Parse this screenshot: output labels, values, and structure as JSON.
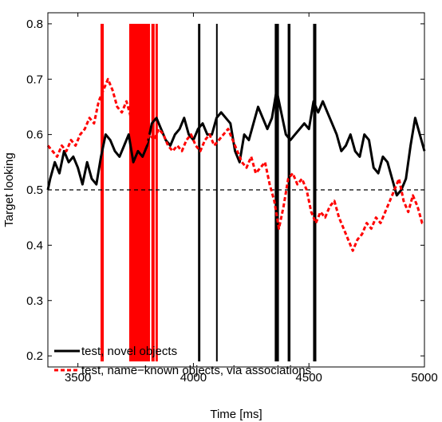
{
  "chart_data": {
    "type": "line",
    "title": "",
    "xlabel": "Time [ms]",
    "ylabel": "Target looking",
    "xlim": [
      3370,
      5000
    ],
    "ylim": [
      0.18,
      0.82
    ],
    "xticks": [
      3500,
      4000,
      4500,
      5000
    ],
    "yticks": [
      0.2,
      0.3,
      0.4,
      0.5,
      0.6,
      0.7,
      0.8
    ],
    "grid": false,
    "legend_position": "bottom-left",
    "reference_line": {
      "y": 0.5,
      "style": "dashed",
      "color": "#000000"
    },
    "series": [
      {
        "name": "test, novel objects",
        "color": "#000000",
        "style": "solid",
        "x": [
          3370,
          3380,
          3400,
          3420,
          3440,
          3460,
          3480,
          3500,
          3520,
          3540,
          3560,
          3580,
          3600,
          3620,
          3640,
          3660,
          3680,
          3700,
          3720,
          3740,
          3760,
          3780,
          3800,
          3820,
          3840,
          3860,
          3880,
          3900,
          3920,
          3940,
          3960,
          3980,
          4000,
          4020,
          4040,
          4060,
          4080,
          4100,
          4120,
          4140,
          4160,
          4180,
          4200,
          4220,
          4240,
          4260,
          4280,
          4300,
          4320,
          4340,
          4360,
          4380,
          4400,
          4420,
          4440,
          4460,
          4480,
          4500,
          4520,
          4540,
          4560,
          4580,
          4600,
          4620,
          4640,
          4660,
          4680,
          4700,
          4720,
          4740,
          4760,
          4780,
          4800,
          4820,
          4840,
          4860,
          4880,
          4900,
          4920,
          4940,
          4960,
          4980,
          5000
        ],
        "y": [
          0.5,
          0.52,
          0.55,
          0.53,
          0.57,
          0.55,
          0.56,
          0.54,
          0.51,
          0.55,
          0.52,
          0.51,
          0.56,
          0.6,
          0.59,
          0.57,
          0.56,
          0.58,
          0.6,
          0.55,
          0.57,
          0.56,
          0.58,
          0.62,
          0.63,
          0.61,
          0.59,
          0.58,
          0.6,
          0.61,
          0.63,
          0.6,
          0.59,
          0.61,
          0.62,
          0.6,
          0.6,
          0.63,
          0.64,
          0.63,
          0.62,
          0.57,
          0.55,
          0.6,
          0.59,
          0.62,
          0.65,
          0.63,
          0.61,
          0.63,
          0.68,
          0.64,
          0.6,
          0.59,
          0.6,
          0.61,
          0.62,
          0.61,
          0.66,
          0.64,
          0.66,
          0.64,
          0.62,
          0.6,
          0.57,
          0.58,
          0.6,
          0.57,
          0.56,
          0.6,
          0.59,
          0.54,
          0.53,
          0.56,
          0.55,
          0.52,
          0.49,
          0.5,
          0.52,
          0.58,
          0.63,
          0.6,
          0.57
        ]
      },
      {
        "name": "test, name−known objects, via associations",
        "color": "#ff0000",
        "style": "dashed",
        "x": [
          3370,
          3390,
          3410,
          3430,
          3450,
          3470,
          3490,
          3510,
          3530,
          3550,
          3570,
          3590,
          3610,
          3630,
          3650,
          3670,
          3690,
          3710,
          3730,
          3750,
          3770,
          3790,
          3810,
          3830,
          3850,
          3870,
          3890,
          3910,
          3930,
          3950,
          3970,
          3990,
          4010,
          4030,
          4050,
          4070,
          4090,
          4110,
          4130,
          4150,
          4170,
          4190,
          4210,
          4230,
          4250,
          4270,
          4290,
          4310,
          4330,
          4350,
          4370,
          4390,
          4410,
          4430,
          4450,
          4470,
          4490,
          4510,
          4530,
          4550,
          4570,
          4590,
          4610,
          4630,
          4650,
          4670,
          4690,
          4710,
          4730,
          4750,
          4770,
          4790,
          4810,
          4830,
          4850,
          4870,
          4890,
          4910,
          4930,
          4950,
          4970,
          4990,
          5000
        ],
        "y": [
          0.58,
          0.57,
          0.56,
          0.58,
          0.57,
          0.59,
          0.58,
          0.6,
          0.61,
          0.63,
          0.62,
          0.66,
          0.68,
          0.7,
          0.68,
          0.65,
          0.64,
          0.66,
          0.63,
          0.62,
          0.6,
          0.58,
          0.6,
          0.59,
          0.61,
          0.6,
          0.58,
          0.57,
          0.58,
          0.57,
          0.59,
          0.6,
          0.58,
          0.57,
          0.59,
          0.6,
          0.58,
          0.59,
          0.6,
          0.61,
          0.59,
          0.57,
          0.55,
          0.54,
          0.56,
          0.53,
          0.54,
          0.55,
          0.51,
          0.48,
          0.43,
          0.47,
          0.52,
          0.53,
          0.51,
          0.52,
          0.5,
          0.46,
          0.44,
          0.46,
          0.45,
          0.47,
          0.48,
          0.45,
          0.43,
          0.41,
          0.39,
          0.41,
          0.42,
          0.44,
          0.43,
          0.45,
          0.44,
          0.46,
          0.48,
          0.5,
          0.52,
          0.48,
          0.46,
          0.49,
          0.47,
          0.44,
          0.44
        ]
      }
    ],
    "significance_bars": [
      {
        "series": "test, name−known objects, via associations",
        "color": "#ff0000",
        "x_start": 3598,
        "x_end": 3612
      },
      {
        "series": "test, name−known objects, via associations",
        "color": "#ff0000",
        "x_start": 3722,
        "x_end": 3812
      },
      {
        "series": "test, name−known objects, via associations",
        "color": "#ff0000",
        "x_start": 3818,
        "x_end": 3832
      },
      {
        "series": "test, name−known objects, via associations",
        "color": "#ff0000",
        "x_start": 3836,
        "x_end": 3846
      },
      {
        "series": "test, novel objects",
        "color": "#000000",
        "x_start": 4020,
        "x_end": 4030
      },
      {
        "series": "test, novel objects",
        "color": "#000000",
        "x_start": 4098,
        "x_end": 4102
      },
      {
        "series": "test, novel objects",
        "color": "#000000",
        "x_start": 4352,
        "x_end": 4370
      },
      {
        "series": "test, novel objects",
        "color": "#000000",
        "x_start": 4408,
        "x_end": 4420
      },
      {
        "series": "test, novel objects",
        "color": "#000000",
        "x_start": 4518,
        "x_end": 4532
      }
    ]
  }
}
